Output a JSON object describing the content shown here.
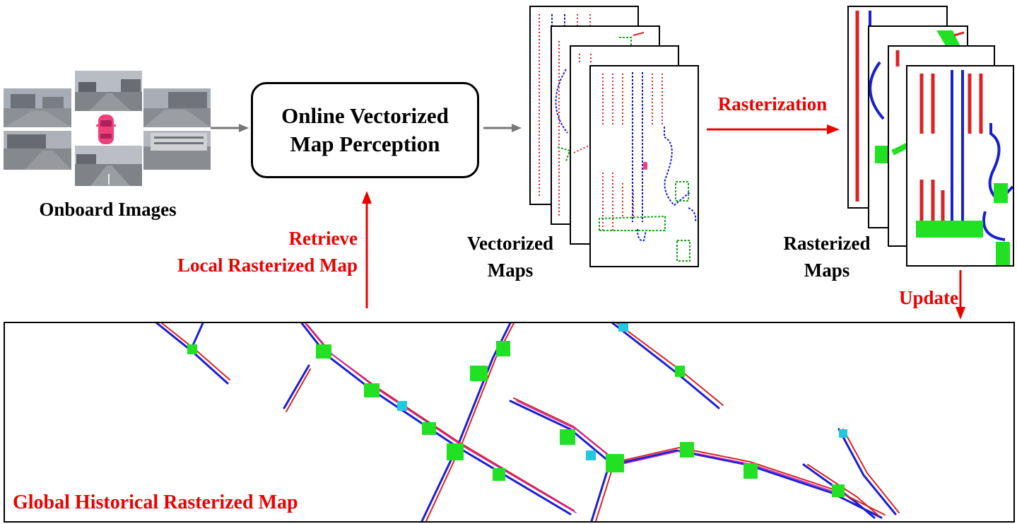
{
  "inputs": {
    "label": "Onboard Images",
    "camera_views": [
      "front-left camera",
      "front camera",
      "front-right camera",
      "back-left camera",
      "back camera",
      "back-right camera"
    ]
  },
  "perception": {
    "line1": "Online Vectorized",
    "line2": "Map Perception"
  },
  "vectorized": {
    "line1": "Vectorized",
    "line2": "Maps"
  },
  "rasterized": {
    "line1": "Rasterized",
    "line2": "Maps"
  },
  "arrows": {
    "rasterization": "Rasterization",
    "retrieve_line1": "Retrieve",
    "retrieve_line2": "Local Rasterized Map",
    "update": "Update"
  },
  "global_map": {
    "label": "Global Historical Rasterized Map"
  },
  "colors": {
    "accent_red": "#ee0000",
    "divider_red": "#dd2222",
    "boundary_blue": "#1a1fd0",
    "crossing_green": "#1aa31a",
    "raster_green": "#22e022",
    "arrow_gray": "#777777",
    "car_pink": "#f0407a"
  }
}
